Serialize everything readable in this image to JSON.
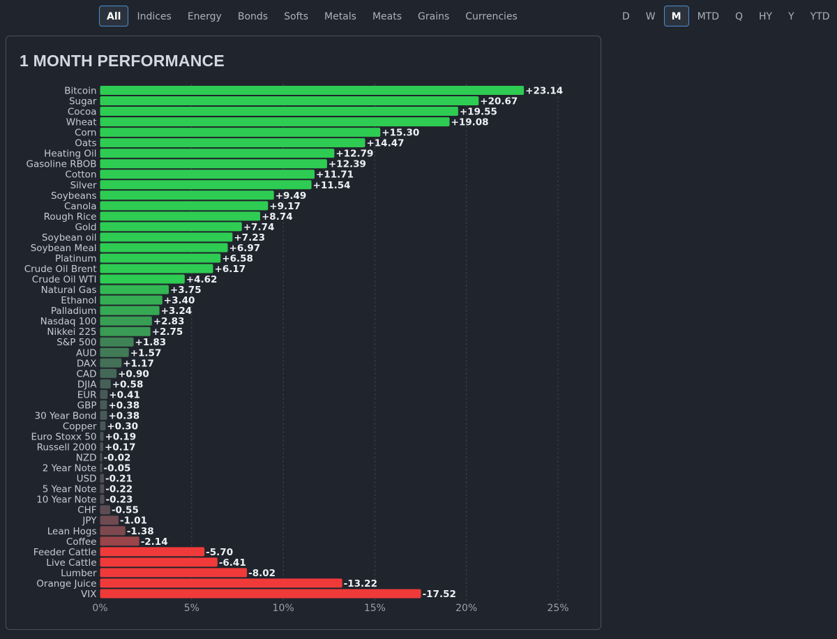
{
  "category_tabs": [
    {
      "label": "All",
      "active": true
    },
    {
      "label": "Indices",
      "active": false
    },
    {
      "label": "Energy",
      "active": false
    },
    {
      "label": "Bonds",
      "active": false
    },
    {
      "label": "Softs",
      "active": false
    },
    {
      "label": "Metals",
      "active": false
    },
    {
      "label": "Meats",
      "active": false
    },
    {
      "label": "Grains",
      "active": false
    },
    {
      "label": "Currencies",
      "active": false
    }
  ],
  "period_tabs": [
    {
      "label": "D",
      "active": false
    },
    {
      "label": "W",
      "active": false
    },
    {
      "label": "M",
      "active": true
    },
    {
      "label": "MTD",
      "active": false
    },
    {
      "label": "Q",
      "active": false
    },
    {
      "label": "HY",
      "active": false
    },
    {
      "label": "Y",
      "active": false
    },
    {
      "label": "YTD",
      "active": false
    }
  ],
  "colors": {
    "positive": "#2ecc52",
    "negative": "#f03a3a",
    "neutral": "#4a4f58",
    "label": "#c5cbd6",
    "value_label": "#eef1f5",
    "grid": "#3e4450"
  },
  "chart_data": {
    "type": "bar",
    "orientation": "horizontal",
    "title": "1 MONTH PERFORMANCE",
    "xlim": [
      0,
      25
    ],
    "x_ticks": [
      0,
      5,
      10,
      15,
      20,
      25
    ],
    "x_tick_labels": [
      "0%",
      "5%",
      "10%",
      "15%",
      "20%",
      "25%"
    ],
    "bar_length": "absolute value",
    "grid": "vertical dashed",
    "categories": [
      "Bitcoin",
      "Sugar",
      "Cocoa",
      "Wheat",
      "Corn",
      "Oats",
      "Heating Oil",
      "Gasoline RBOB",
      "Cotton",
      "Silver",
      "Soybeans",
      "Canola",
      "Rough Rice",
      "Gold",
      "Soybean oil",
      "Soybean Meal",
      "Platinum",
      "Crude Oil Brent",
      "Crude Oil WTI",
      "Natural Gas",
      "Ethanol",
      "Palladium",
      "Nasdaq 100",
      "Nikkei 225",
      "S&P 500",
      "AUD",
      "DAX",
      "CAD",
      "DJIA",
      "EUR",
      "GBP",
      "30 Year Bond",
      "Copper",
      "Euro Stoxx 50",
      "Russell 2000",
      "NZD",
      "2 Year Note",
      "USD",
      "5 Year Note",
      "10 Year Note",
      "CHF",
      "JPY",
      "Lean Hogs",
      "Coffee",
      "Feeder Cattle",
      "Live Cattle",
      "Lumber",
      "Orange Juice",
      "VIX"
    ],
    "values": [
      23.14,
      20.67,
      19.55,
      19.08,
      15.3,
      14.47,
      12.79,
      12.39,
      11.71,
      11.54,
      9.49,
      9.17,
      8.74,
      7.74,
      7.23,
      6.97,
      6.58,
      6.17,
      4.62,
      3.75,
      3.4,
      3.24,
      2.83,
      2.75,
      1.83,
      1.57,
      1.17,
      0.9,
      0.58,
      0.41,
      0.38,
      0.38,
      0.3,
      0.19,
      0.17,
      -0.02,
      -0.05,
      -0.21,
      -0.22,
      -0.23,
      -0.55,
      -1.01,
      -1.38,
      -2.14,
      -5.7,
      -6.41,
      -8.02,
      -13.22,
      -17.52
    ],
    "value_labels": [
      "+23.14",
      "+20.67",
      "+19.55",
      "+19.08",
      "+15.30",
      "+14.47",
      "+12.79",
      "+12.39",
      "+11.71",
      "+11.54",
      "+9.49",
      "+9.17",
      "+8.74",
      "+7.74",
      "+7.23",
      "+6.97",
      "+6.58",
      "+6.17",
      "+4.62",
      "+3.75",
      "+3.40",
      "+3.24",
      "+2.83",
      "+2.75",
      "+1.83",
      "+1.57",
      "+1.17",
      "+0.90",
      "+0.58",
      "+0.41",
      "+0.38",
      "+0.38",
      "+0.30",
      "+0.19",
      "+0.17",
      "-0.02",
      "-0.05",
      "-0.21",
      "-0.22",
      "-0.23",
      "-0.55",
      "-1.01",
      "-1.38",
      "-2.14",
      "-5.70",
      "-6.41",
      "-8.02",
      "-13.22",
      "-17.52"
    ]
  }
}
